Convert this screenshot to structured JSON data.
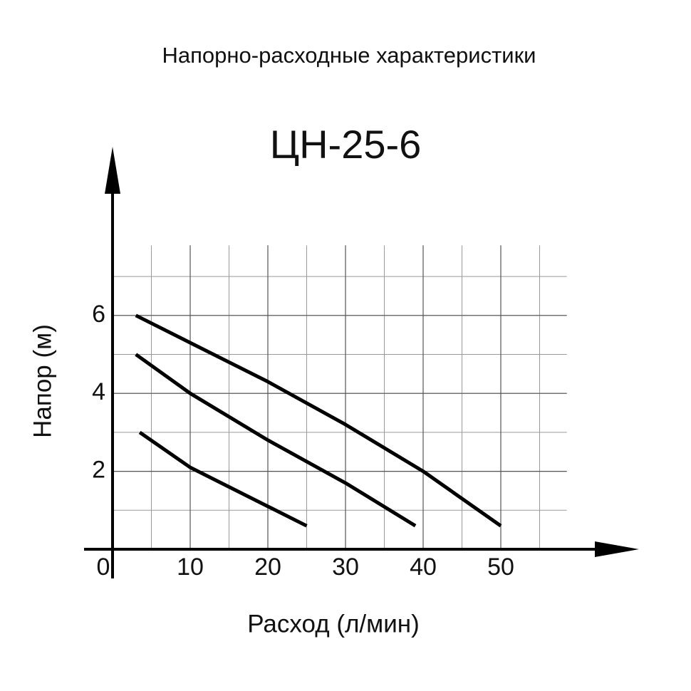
{
  "chart_data": {
    "type": "line",
    "title": "Напорно-расходные характеристики",
    "subtitle": "ЦН-25-6",
    "x_label": "Расход (л/мин)",
    "y_label": "Напор (м)",
    "xlim": [
      0,
      58.5
    ],
    "ylim": [
      0,
      7.8
    ],
    "xticks": [
      0,
      10,
      20,
      30,
      40,
      50
    ],
    "yticks": [
      2,
      4,
      6
    ],
    "grid": true,
    "series": [
      {
        "color": "#000000",
        "x": [
          3,
          10,
          20,
          30,
          40,
          50
        ],
        "values": [
          6,
          5.3,
          4.3,
          3.2,
          2.0,
          0.6
        ]
      },
      {
        "color": "#000000",
        "x": [
          3,
          10,
          20,
          30,
          39
        ],
        "values": [
          5,
          4.0,
          2.8,
          1.7,
          0.6
        ]
      },
      {
        "color": "#000000",
        "x": [
          3.5,
          10,
          20,
          25
        ],
        "values": [
          3,
          2.1,
          1.1,
          0.6
        ]
      }
    ]
  }
}
